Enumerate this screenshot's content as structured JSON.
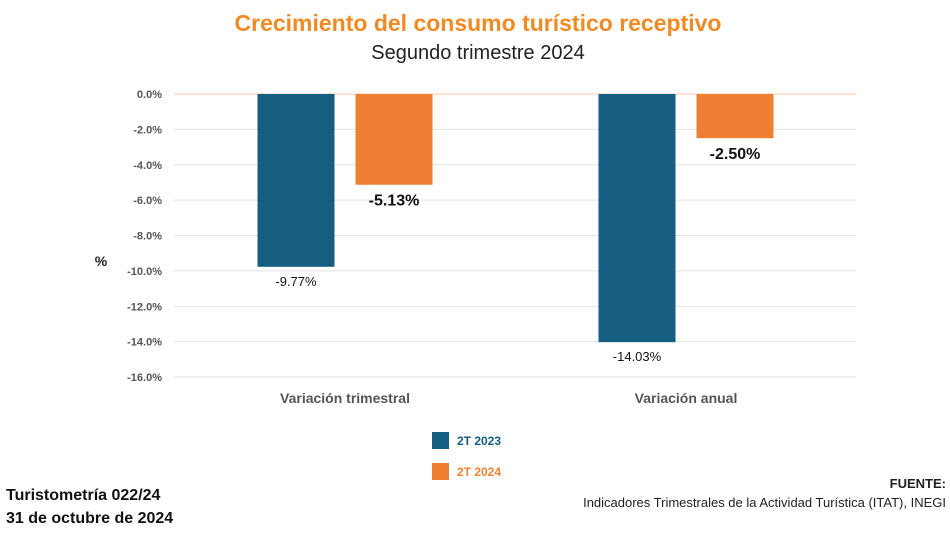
{
  "header": {
    "title": "Crecimiento del consumo turístico receptivo",
    "subtitle": "Segundo trimestre 2024"
  },
  "footer": {
    "publication": "Turistometría 022/24",
    "date": "31 de octubre de 2024",
    "source_label": "FUENTE:",
    "source_text": "Indicadores Trimestrales de la Actividad Turística (ITAT), INEGI"
  },
  "colors": {
    "series_2023": "#155e82",
    "series_2024": "#ee7f33",
    "title": "#f08a24"
  },
  "chart_data": {
    "type": "bar",
    "title": "Crecimiento del consumo turístico receptivo",
    "subtitle": "Segundo trimestre 2024",
    "ylabel": "%",
    "xlabel": "",
    "ylim": [
      -16,
      0
    ],
    "yticks": [
      0,
      -2,
      -4,
      -6,
      -8,
      -10,
      -12,
      -14,
      -16
    ],
    "ytick_labels": [
      "0.0%",
      "-2.0%",
      "-4.0%",
      "-6.0%",
      "-8.0%",
      "-10.0%",
      "-12.0%",
      "-14.0%",
      "-16.0%"
    ],
    "grid": true,
    "legend": "bottom",
    "categories": [
      "Variación trimestral",
      "Variación anual"
    ],
    "series": [
      {
        "name": "2T 2023",
        "values": [
          -9.77,
          -14.03
        ],
        "labels": [
          "-9.77%",
          "-14.03%"
        ]
      },
      {
        "name": "2T 2024",
        "values": [
          -5.13,
          -2.5
        ],
        "labels": [
          "-5.13%",
          "-2.50%"
        ]
      }
    ]
  }
}
